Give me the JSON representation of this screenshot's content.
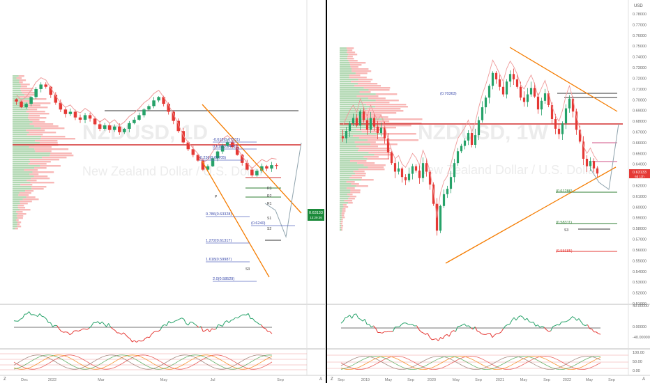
{
  "colors": {
    "bull": "#26a269",
    "bear": "#e53935",
    "orange": "#f57c00",
    "hline_red": "#d32f2f",
    "black_line": "#333333",
    "green_line": "#2e7d32",
    "blue_line": "#5c6bc0",
    "price_tag_left": "#1b8a3a",
    "price_tag_right": "#e53935"
  },
  "left": {
    "watermark_symbol": "NZDUSD, 1D",
    "watermark_desc": "New Zealand Dollar / U.S. Dollar",
    "x_labels": [
      "Dec",
      "2022",
      "Mar",
      "May",
      "Jul",
      "Sep"
    ],
    "fib_labels": [
      "-0.618(0.67931)",
      "0.618(0.64781)",
      "-0.236(0.65705)",
      "0.786(0.63328)",
      "1.272(0.61317)",
      "1.618(0.59987)",
      "2.0(0.58529)",
      "(0.6240)"
    ],
    "level_marks": [
      "R3",
      "R2",
      "R1",
      "P",
      "S1",
      "S2",
      "S3"
    ],
    "price_tag": "0.63133",
    "price_tag_sub": "13:29:36"
  },
  "right": {
    "watermark_symbol": "NZDUSD, 1W",
    "watermark_desc": "New Zealand Dollar / U.S. Dollar",
    "currency": "USD",
    "y_labels": [
      "0.78000",
      "0.77000",
      "0.76000",
      "0.75000",
      "0.74000",
      "0.73000",
      "0.72000",
      "0.71000",
      "0.70000",
      "0.69000",
      "0.68000",
      "0.67000",
      "0.66000",
      "0.65000",
      "0.64000",
      "0.63000",
      "0.62000",
      "0.61000",
      "0.60000",
      "0.59000",
      "0.58000",
      "0.57000",
      "0.56000",
      "0.55000",
      "0.54000",
      "0.53000",
      "0.52000",
      "0.51000"
    ],
    "x_labels": [
      "Sep",
      "2019",
      "May",
      "Sep",
      "2020",
      "May",
      "Sep",
      "2021",
      "May",
      "Sep",
      "2022",
      "May",
      "Sep"
    ],
    "fib_labels": [
      "(0.70363)",
      "(0.61286)",
      "(0.58311)",
      "(0.55685)"
    ],
    "level_marks": [
      "S3"
    ],
    "price_tag": "0.63133",
    "price_tag_sub": "6d 11h",
    "rsi_labels": [
      "40.00000",
      "0.00000",
      "-40.00000"
    ],
    "stoch_labels": [
      "100.00",
      "50.00",
      "0.00"
    ]
  },
  "footer_marks": [
    "Z",
    "A"
  ],
  "chart_data": [
    {
      "type": "candlestick",
      "title": "NZDUSD, 1D",
      "subtitle": "New Zealand Dollar / U.S. Dollar",
      "x": [
        "Dec",
        "2022",
        "Mar",
        "May",
        "Jul",
        "Sep"
      ],
      "ylim": [
        0.575,
        0.71
      ],
      "closes": [
        0.688,
        0.683,
        0.686,
        0.692,
        0.699,
        0.703,
        0.701,
        0.694,
        0.687,
        0.681,
        0.677,
        0.679,
        0.674,
        0.672,
        0.676,
        0.673,
        0.668,
        0.664,
        0.667,
        0.663,
        0.666,
        0.661,
        0.664,
        0.669,
        0.672,
        0.676,
        0.681,
        0.684,
        0.689,
        0.692,
        0.686,
        0.679,
        0.671,
        0.662,
        0.652,
        0.646,
        0.641,
        0.636,
        0.628,
        0.631,
        0.638,
        0.644,
        0.649,
        0.652,
        0.648,
        0.641,
        0.634,
        0.628,
        0.623,
        0.627,
        0.631,
        0.629,
        0.632,
        0.6313
      ]
    },
    {
      "type": "candlestick",
      "title": "NZDUSD, 1W",
      "subtitle": "New Zealand Dollar / U.S. Dollar",
      "x": [
        "Sep",
        "2019",
        "May",
        "Sep",
        "2020",
        "May",
        "Sep",
        "2021",
        "May",
        "Sep",
        "2022",
        "May",
        "Sep"
      ],
      "ylim": [
        0.51,
        0.78
      ],
      "closes": [
        0.664,
        0.671,
        0.678,
        0.683,
        0.676,
        0.689,
        0.681,
        0.672,
        0.683,
        0.675,
        0.669,
        0.674,
        0.664,
        0.651,
        0.641,
        0.633,
        0.636,
        0.628,
        0.625,
        0.631,
        0.638,
        0.634,
        0.627,
        0.641,
        0.633,
        0.621,
        0.603,
        0.578,
        0.601,
        0.612,
        0.617,
        0.628,
        0.641,
        0.652,
        0.657,
        0.662,
        0.669,
        0.658,
        0.667,
        0.681,
        0.693,
        0.702,
        0.713,
        0.725,
        0.719,
        0.712,
        0.705,
        0.717,
        0.724,
        0.719,
        0.712,
        0.702,
        0.698,
        0.705,
        0.711,
        0.703,
        0.691,
        0.699,
        0.706,
        0.695,
        0.682,
        0.673,
        0.668,
        0.678,
        0.692,
        0.701,
        0.689,
        0.672,
        0.661,
        0.645,
        0.638,
        0.643,
        0.636,
        0.6313
      ]
    }
  ]
}
